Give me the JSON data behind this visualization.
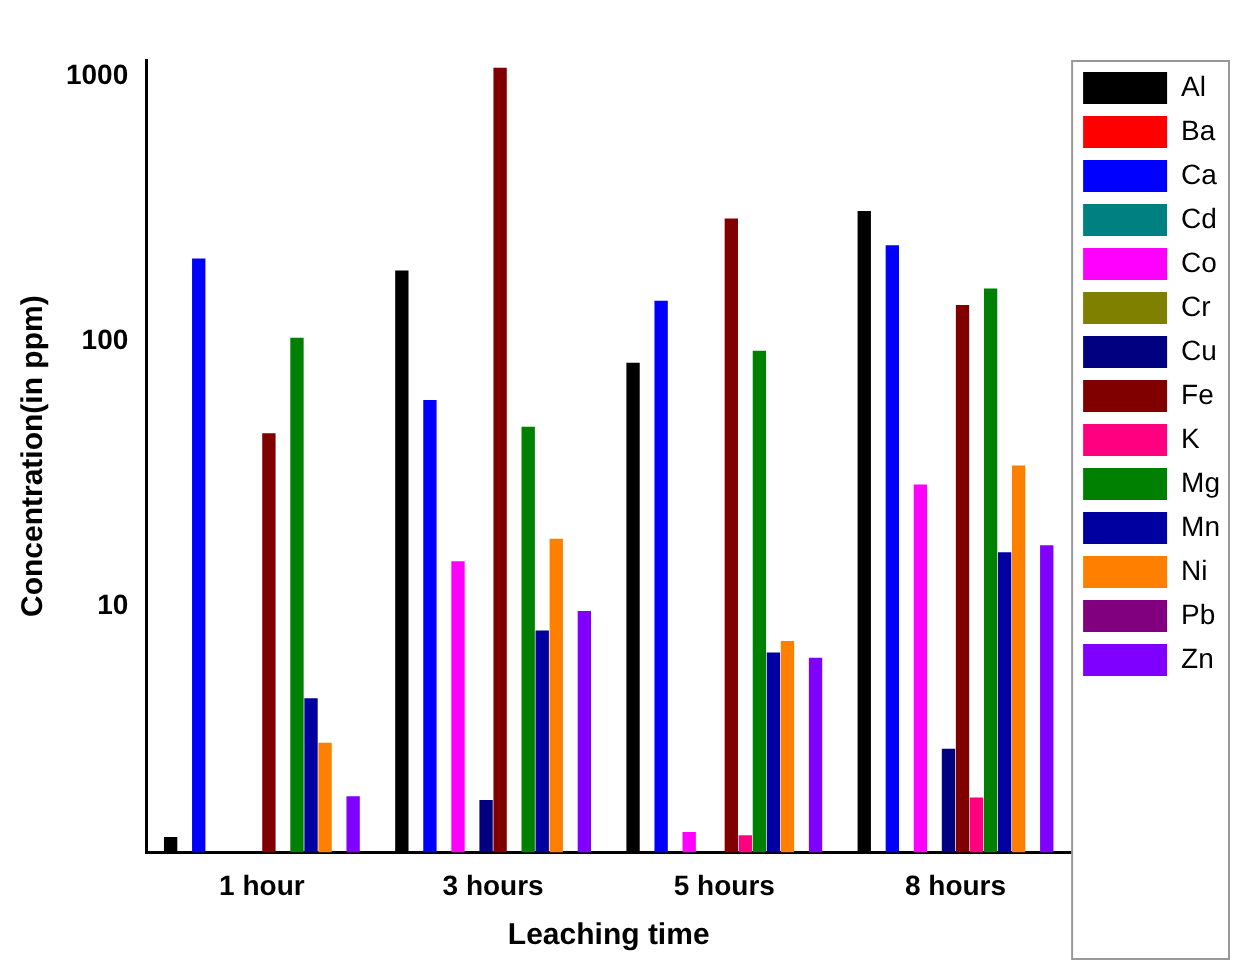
{
  "chart_data": {
    "type": "bar",
    "xlabel": "Leaching time",
    "ylabel": "Concentration(in ppm)",
    "categories": [
      "1 hour",
      "3 hours",
      "5 hours",
      "8 hours"
    ],
    "series": [
      {
        "name": "Al",
        "color": "#000000",
        "values": [
          1.35,
          185,
          83,
          310
        ]
      },
      {
        "name": "Ba",
        "color": "#ff0000",
        "values": [
          null,
          null,
          null,
          null
        ]
      },
      {
        "name": "Ca",
        "color": "#0000ff",
        "values": [
          205,
          60,
          142,
          230
        ]
      },
      {
        "name": "Cd",
        "color": "#008080",
        "values": [
          null,
          null,
          null,
          null
        ]
      },
      {
        "name": "Co",
        "color": "#ff00ff",
        "values": [
          null,
          14.8,
          1.41,
          28.8
        ]
      },
      {
        "name": "Cr",
        "color": "#808000",
        "values": [
          null,
          null,
          null,
          null
        ]
      },
      {
        "name": "Cu",
        "color": "#000080",
        "values": [
          null,
          1.86,
          null,
          2.9
        ]
      },
      {
        "name": "Fe",
        "color": "#800000",
        "values": [
          45,
          1075,
          290,
          137
        ]
      },
      {
        "name": "K",
        "color": "#ff0080",
        "values": [
          null,
          null,
          1.37,
          1.9
        ]
      },
      {
        "name": "Mg",
        "color": "#008000",
        "values": [
          103,
          47.6,
          92,
          158
        ]
      },
      {
        "name": "Mn",
        "color": "#0000a0",
        "values": [
          4.5,
          8.1,
          6.7,
          16
        ]
      },
      {
        "name": "Ni",
        "color": "#ff8000",
        "values": [
          3.06,
          18,
          7.4,
          34
        ]
      },
      {
        "name": "Pb",
        "color": "#800080",
        "values": [
          null,
          null,
          null,
          null
        ]
      },
      {
        "name": "Zn",
        "color": "#8000ff",
        "values": [
          1.92,
          9.6,
          6.4,
          17
        ]
      }
    ],
    "log": true,
    "ylim": [
      1.18,
      1150
    ],
    "yticks": [
      10,
      100,
      1000
    ],
    "grid": false,
    "legend": "right"
  }
}
